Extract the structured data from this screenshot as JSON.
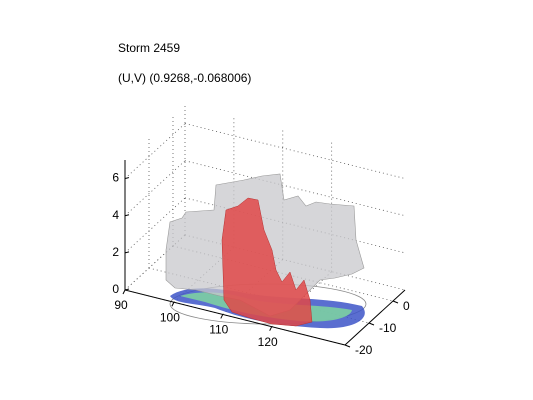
{
  "chart_data": {
    "type": "isosurface3d",
    "title": "Storm 2459",
    "subtitle": "(U,V) (0.9268,-0.068006)",
    "xlim": [
      90,
      135
    ],
    "xticks": [
      90,
      100,
      110,
      120
    ],
    "ylim": [
      -20,
      5
    ],
    "yticks": [
      -20,
      -10,
      0
    ],
    "zlim": [
      0,
      7
    ],
    "zticks": [
      0,
      2,
      4,
      6
    ],
    "grid": true
  }
}
